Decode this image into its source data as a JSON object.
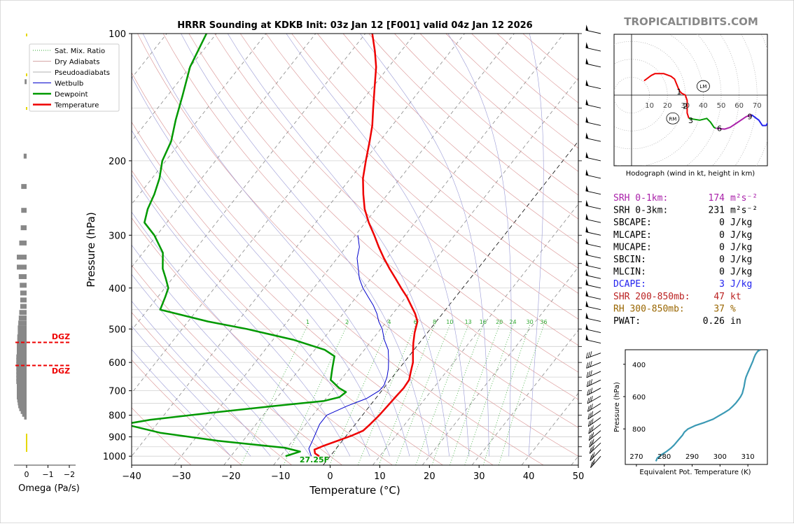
{
  "chart_data": [
    {
      "type": "line",
      "title": "HRRR Sounding at KDKB Init: 03z Jan 12 [F001] valid 04z Jan 12 2026",
      "xlabel": "Temperature (°C)",
      "ylabel": "Pressure (hPa)",
      "xlim": [
        -40,
        50
      ],
      "ylim": [
        1050,
        100
      ],
      "log_y": true,
      "skew": true,
      "x_ticks": [
        "−40",
        "−30",
        "−20",
        "−10",
        "0",
        "10",
        "20",
        "30",
        "40",
        "50"
      ],
      "y_ticks": [
        "100",
        "200",
        "300",
        "400",
        "500",
        "600",
        "700",
        "800",
        "900",
        "1000"
      ],
      "legend": {
        "placement": "top-left",
        "entries": [
          "Sat. Mix. Ratio",
          "Dry Adiabats",
          "Pseudoadiabats",
          "Wetbulb",
          "Dewpoint",
          "Temperature"
        ]
      },
      "mixing_ratio_labels": [
        "1",
        "2",
        "4",
        "6",
        "8",
        "10",
        "13",
        "16",
        "20",
        "24",
        "30",
        "36"
      ],
      "surface_label": "27.25F",
      "series": [
        {
          "name": "Temperature",
          "color": "#ee0000",
          "points": [
            [
              1000,
              -2.2
            ],
            [
              985,
              -3.5
            ],
            [
              965,
              -4.2
            ],
            [
              945,
              -3.0
            ],
            [
              920,
              -1.0
            ],
            [
              895,
              1.0
            ],
            [
              870,
              2.6
            ],
            [
              840,
              3.0
            ],
            [
              800,
              3.4
            ],
            [
              760,
              3.6
            ],
            [
              720,
              3.8
            ],
            [
              690,
              4.0
            ],
            [
              660,
              3.8
            ],
            [
              630,
              2.8
            ],
            [
              600,
              1.8
            ],
            [
              570,
              0.3
            ],
            [
              540,
              -1.2
            ],
            [
              510,
              -2.6
            ],
            [
              480,
              -3.8
            ],
            [
              460,
              -5.5
            ],
            [
              440,
              -7.6
            ],
            [
              420,
              -9.8
            ],
            [
              400,
              -12.4
            ],
            [
              380,
              -15.0
            ],
            [
              360,
              -17.8
            ],
            [
              340,
              -20.6
            ],
            [
              320,
              -23.4
            ],
            [
              300,
              -26.2
            ],
            [
              280,
              -29.3
            ],
            [
              260,
              -32.3
            ],
            [
              240,
              -34.9
            ],
            [
              220,
              -37.5
            ],
            [
              200,
              -39.7
            ],
            [
              180,
              -42.0
            ],
            [
              165,
              -44.0
            ],
            [
              150,
              -46.6
            ],
            [
              135,
              -49.4
            ],
            [
              120,
              -52.5
            ],
            [
              110,
              -55.3
            ],
            [
              100,
              -58.6
            ]
          ]
        },
        {
          "name": "Dewpoint",
          "color": "#009900",
          "points": [
            [
              1000,
              -9.0
            ],
            [
              975,
              -6.8
            ],
            [
              955,
              -10.5
            ],
            [
              920,
              -25.0
            ],
            [
              880,
              -38.0
            ],
            [
              840,
              -46.5
            ],
            [
              820,
              -42.0
            ],
            [
              790,
              -31.0
            ],
            [
              760,
              -19.0
            ],
            [
              740,
              -10.0
            ],
            [
              725,
              -7.5
            ],
            [
              705,
              -7.0
            ],
            [
              690,
              -9.0
            ],
            [
              660,
              -12.0
            ],
            [
              620,
              -13.5
            ],
            [
              580,
              -15.0
            ],
            [
              560,
              -18.0
            ],
            [
              530,
              -26.0
            ],
            [
              500,
              -37.0
            ],
            [
              480,
              -46.0
            ],
            [
              450,
              -57.5
            ],
            [
              420,
              -58.5
            ],
            [
              400,
              -59.3
            ],
            [
              380,
              -61.3
            ],
            [
              360,
              -63.5
            ],
            [
              330,
              -66.0
            ],
            [
              300,
              -70.5
            ],
            [
              280,
              -74.5
            ],
            [
              260,
              -76.0
            ],
            [
              240,
              -77.0
            ],
            [
              220,
              -78.5
            ],
            [
              200,
              -80.7
            ],
            [
              180,
              -82.0
            ],
            [
              160,
              -84.5
            ],
            [
              140,
              -87.0
            ],
            [
              120,
              -90.0
            ],
            [
              100,
              -92.0
            ]
          ]
        },
        {
          "name": "Wetbulb",
          "color": "#0000cc",
          "points": [
            [
              1000,
              -3.8
            ],
            [
              960,
              -5.5
            ],
            [
              920,
              -6.0
            ],
            [
              880,
              -6.6
            ],
            [
              840,
              -7.2
            ],
            [
              800,
              -7.2
            ],
            [
              760,
              -4.5
            ],
            [
              730,
              -1.8
            ],
            [
              700,
              -0.5
            ],
            [
              680,
              -0.4
            ],
            [
              650,
              -1.1
            ],
            [
              620,
              -2.2
            ],
            [
              590,
              -3.6
            ],
            [
              560,
              -5.2
            ],
            [
              530,
              -7.6
            ],
            [
              500,
              -9.7
            ],
            [
              480,
              -11.6
            ],
            [
              460,
              -13.2
            ],
            [
              440,
              -15.2
            ],
            [
              420,
              -17.6
            ],
            [
              400,
              -20.1
            ],
            [
              380,
              -22.3
            ],
            [
              360,
              -24.1
            ],
            [
              340,
              -26.0
            ],
            [
              320,
              -27.3
            ],
            [
              300,
              -29.5
            ]
          ]
        }
      ]
    },
    {
      "type": "bar",
      "xlabel": "Omega (Pa/s)",
      "x_ticks": [
        "0",
        "−1",
        "−2"
      ],
      "annotations": [
        "DGZ",
        "DGZ"
      ],
      "dgz_pressures": [
        538,
        610
      ],
      "values": [
        [
          130,
          0.04
        ],
        [
          195,
          0.06
        ],
        [
          230,
          0.11
        ],
        [
          262,
          0.11
        ],
        [
          288,
          0.12
        ],
        [
          313,
          0.15
        ],
        [
          338,
          0.2
        ],
        [
          357,
          0.2
        ],
        [
          376,
          0.16
        ],
        [
          394,
          0.14
        ],
        [
          411,
          0.13
        ],
        [
          427,
          0.13
        ],
        [
          442,
          0.13
        ],
        [
          457,
          0.15
        ],
        [
          471,
          0.16
        ],
        [
          484,
          0.17
        ],
        [
          497,
          0.18
        ],
        [
          510,
          0.18
        ],
        [
          522,
          0.19
        ],
        [
          534,
          0.19
        ],
        [
          546,
          0.2
        ],
        [
          558,
          0.2
        ],
        [
          570,
          0.2
        ],
        [
          582,
          0.21
        ],
        [
          594,
          0.21
        ],
        [
          606,
          0.21
        ],
        [
          618,
          0.21
        ],
        [
          630,
          0.21
        ],
        [
          642,
          0.21
        ],
        [
          654,
          0.21
        ],
        [
          666,
          0.21
        ],
        [
          678,
          0.2
        ],
        [
          690,
          0.2
        ],
        [
          700,
          0.2
        ],
        [
          712,
          0.2
        ],
        [
          724,
          0.2
        ],
        [
          736,
          0.19
        ],
        [
          748,
          0.18
        ],
        [
          760,
          0.17
        ],
        [
          772,
          0.15
        ],
        [
          784,
          0.12
        ],
        [
          796,
          0.09
        ],
        [
          808,
          0.05
        ]
      ]
    },
    {
      "type": "line",
      "title": "Hodograph (wind in kt, height in km)",
      "ring_labels": [
        "10",
        "20",
        "30",
        "40",
        "50",
        "60",
        "70"
      ],
      "height_marks": [
        "1",
        "2",
        "3",
        "6",
        "9"
      ],
      "storm_motion": [
        {
          "label": "LM",
          "u": 40,
          "v": 5
        },
        {
          "label": "RM",
          "u": 23,
          "v": -13
        }
      ],
      "segments": [
        {
          "color": "#ee0000",
          "points": [
            [
              7,
              8
            ],
            [
              11,
              11
            ],
            [
              13,
              12
            ],
            [
              18,
              12
            ],
            [
              22,
              10.5
            ],
            [
              24,
              9
            ],
            [
              26,
              4
            ],
            [
              27,
              2
            ],
            [
              28,
              1
            ],
            [
              30,
              0
            ],
            [
              31,
              -3
            ],
            [
              31,
              -7
            ],
            [
              31,
              -10
            ],
            [
              32,
              -13
            ]
          ]
        },
        {
          "color": "#009900",
          "points": [
            [
              32,
              -13
            ],
            [
              38,
              -14
            ],
            [
              42,
              -13
            ],
            [
              44,
              -15
            ],
            [
              46,
              -18
            ],
            [
              47,
              -18.5
            ]
          ]
        },
        {
          "color": "#aa22aa",
          "points": [
            [
              47,
              -18.5
            ],
            [
              52,
              -19
            ],
            [
              55,
              -18
            ],
            [
              58,
              -16
            ],
            [
              61,
              -14
            ],
            [
              64,
              -12
            ],
            [
              67,
              -11
            ]
          ]
        },
        {
          "color": "#2222ee",
          "points": [
            [
              67,
              -11
            ],
            [
              71,
              -14
            ],
            [
              73,
              -17
            ],
            [
              75,
              -17
            ],
            [
              77,
              -14
            ],
            [
              78,
              -12
            ]
          ]
        }
      ]
    },
    {
      "type": "line",
      "xlabel": "Equivalent Pot. Temperature (K)",
      "ylabel": "Pressure (hPa)",
      "x_ticks": [
        "270",
        "280",
        "290",
        "300",
        "310"
      ],
      "y_ticks": [
        "400",
        "600",
        "800"
      ],
      "xlim": [
        266,
        317
      ],
      "ylim": [
        1020,
        310
      ],
      "color": "#3a99b4",
      "points": [
        [
          1000,
          277
        ],
        [
          980,
          277.5
        ],
        [
          960,
          279
        ],
        [
          940,
          280.8
        ],
        [
          920,
          282.3
        ],
        [
          900,
          283.5
        ],
        [
          880,
          284.5
        ],
        [
          860,
          285.5
        ],
        [
          840,
          286.5
        ],
        [
          820,
          287.2
        ],
        [
          800,
          288.5
        ],
        [
          780,
          291
        ],
        [
          760,
          294.5
        ],
        [
          740,
          297.5
        ],
        [
          720,
          299.5
        ],
        [
          700,
          301.5
        ],
        [
          680,
          303.3
        ],
        [
          660,
          304.6
        ],
        [
          640,
          305.7
        ],
        [
          620,
          306.6
        ],
        [
          600,
          307.4
        ],
        [
          580,
          308.0
        ],
        [
          560,
          308.3
        ],
        [
          540,
          308.6
        ],
        [
          520,
          308.8
        ],
        [
          500,
          309.0
        ],
        [
          480,
          309.3
        ],
        [
          460,
          309.8
        ],
        [
          440,
          310.3
        ],
        [
          420,
          310.8
        ],
        [
          400,
          311.3
        ],
        [
          380,
          311.8
        ],
        [
          360,
          312.2
        ],
        [
          340,
          312.7
        ],
        [
          320,
          313.5
        ],
        [
          310,
          314.5
        ]
      ]
    }
  ],
  "brand": "TROPICALTIDBITS.COM",
  "indices": {
    "rows": [
      {
        "label": "SRH 0-1km:",
        "value": "174",
        "unit": "m²s⁻²",
        "color": "#aa22aa"
      },
      {
        "label": "SRH 0-3km:",
        "value": "231",
        "unit": "m²s⁻²",
        "color": "#000000"
      },
      {
        "label": "SBCAPE:",
        "value": "0",
        "unit": "J/kg",
        "color": "#000000"
      },
      {
        "label": "MLCAPE:",
        "value": "0",
        "unit": "J/kg",
        "color": "#000000"
      },
      {
        "label": "MUCAPE:",
        "value": "0",
        "unit": "J/kg",
        "color": "#000000"
      },
      {
        "label": "SBCIN:",
        "value": "0",
        "unit": "J/kg",
        "color": "#000000"
      },
      {
        "label": "MLCIN:",
        "value": "0",
        "unit": "J/kg",
        "color": "#000000"
      },
      {
        "label": "DCAPE:",
        "value": "3",
        "unit": "J/kg",
        "color": "#2222ee"
      },
      {
        "label": "SHR 200-850mb:",
        "value": "47",
        "unit": "kt",
        "color": "#bb2222"
      },
      {
        "label": "RH 300-850mb:",
        "value": "37",
        "unit": "%",
        "color": "#996600"
      },
      {
        "label": "PWAT:",
        "value": "0.26",
        "unit": "in",
        "color": "#000000"
      }
    ]
  }
}
